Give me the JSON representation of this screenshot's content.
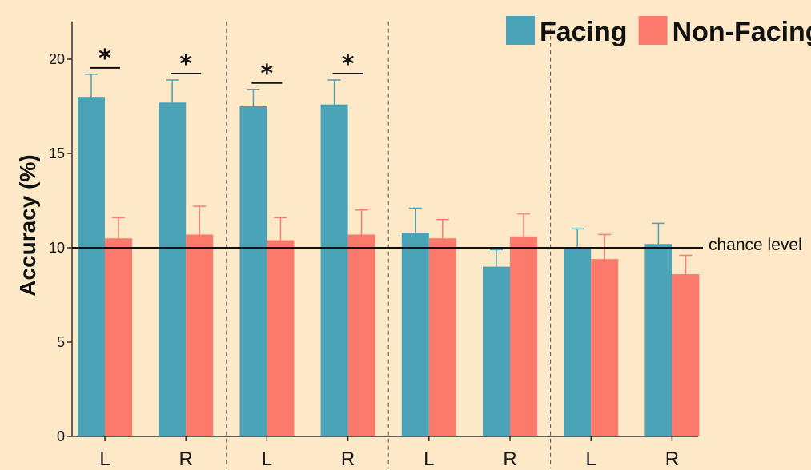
{
  "chart_data": {
    "type": "bar",
    "categories": [
      "L",
      "R",
      "L",
      "R",
      "L",
      "R",
      "L",
      "R"
    ],
    "ylabel": "Accuracy (%)",
    "ylim": [
      0,
      22
    ],
    "yticks": [
      0,
      5,
      10,
      15,
      20
    ],
    "grid": false,
    "legend_position": "top-right",
    "series": [
      {
        "name": "Facing",
        "color": "#4aa3b6",
        "values": [
          18.0,
          17.7,
          17.5,
          17.6,
          10.8,
          9.0,
          10.0,
          10.2
        ],
        "errors": [
          1.2,
          1.2,
          0.9,
          1.3,
          1.3,
          0.9,
          1.0,
          1.1
        ]
      },
      {
        "name": "Non-Facing",
        "color": "#fb7a6b",
        "values": [
          10.5,
          10.7,
          10.4,
          10.7,
          10.5,
          10.6,
          9.4,
          8.6
        ],
        "errors": [
          1.1,
          1.5,
          1.2,
          1.3,
          1.0,
          1.2,
          1.3,
          1.0
        ]
      }
    ],
    "reference_line": {
      "value": 10,
      "label": "chance level"
    },
    "significance": [
      {
        "category_index": 0,
        "label": "*"
      },
      {
        "category_index": 1,
        "label": "*"
      },
      {
        "category_index": 2,
        "label": "*"
      },
      {
        "category_index": 3,
        "label": "*"
      }
    ],
    "group_separators_after": [
      1,
      3,
      5
    ]
  }
}
